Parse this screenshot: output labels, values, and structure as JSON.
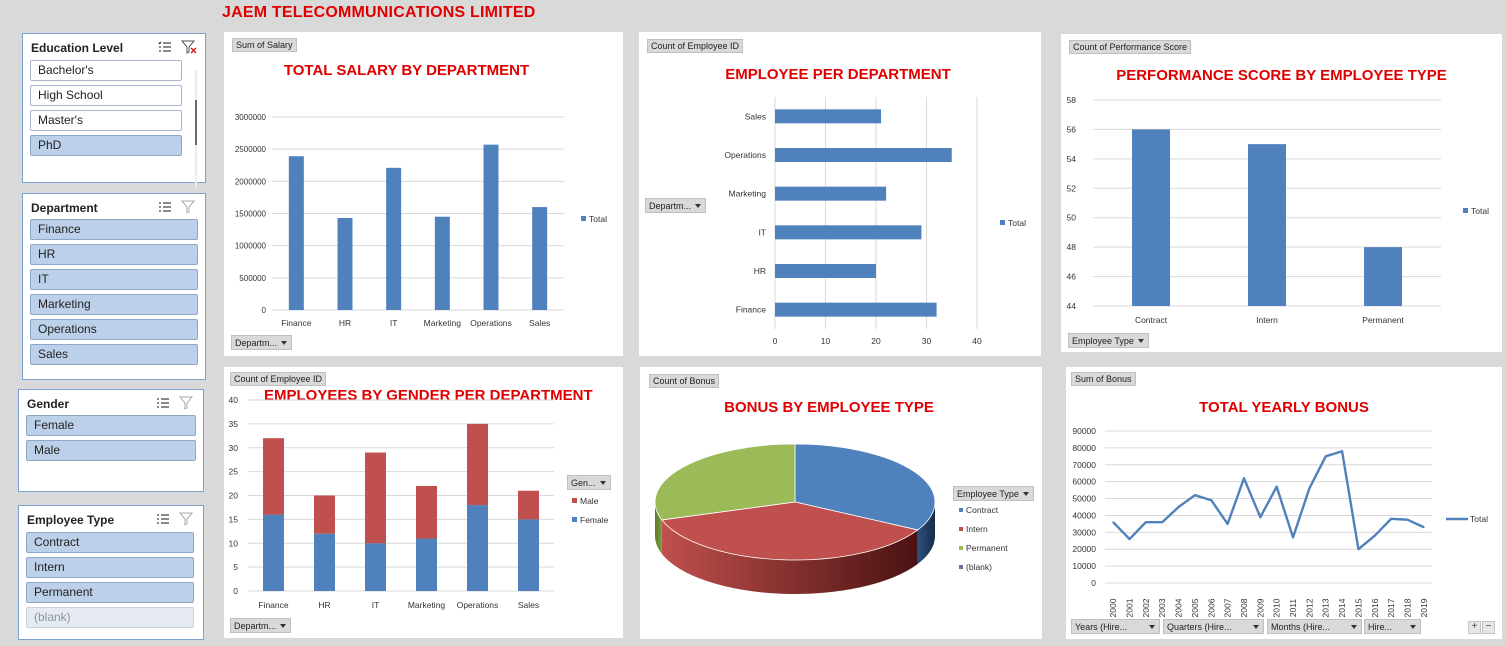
{
  "dashboard": {
    "title": "JAEM TELECOMMUNICATIONS LIMITED"
  },
  "icons": [
    "multi-select-icon",
    "clear-filter-icon",
    "dropdown-arrow-icon",
    "zoom-in-icon",
    "zoom-out-icon"
  ],
  "colors": {
    "blue": "#4f81bd",
    "red": "#c0504d",
    "green": "#9bbb59",
    "purple": "#8064a2",
    "title_red": "#e00000"
  },
  "slicers": {
    "education": {
      "title": "Education Level",
      "items": [
        "Bachelor's",
        "High School",
        "Master's",
        "PhD"
      ],
      "selected": [
        3
      ]
    },
    "department": {
      "title": "Department",
      "items": [
        "Finance",
        "HR",
        "IT",
        "Marketing",
        "Operations",
        "Sales"
      ]
    },
    "gender": {
      "title": "Gender",
      "items": [
        "Female",
        "Male"
      ]
    },
    "employee_type": {
      "title": "Employee Type",
      "items": [
        "Contract",
        "Intern",
        "Permanent",
        "(blank)"
      ]
    }
  },
  "charts": {
    "salary": {
      "tag": "Sum of Salary",
      "title": "TOTAL SALARY BY DEPARTMENT",
      "field_button": "Departm...",
      "legend": "Total"
    },
    "employees": {
      "tag": "Count of Employee ID",
      "title": "EMPLOYEE PER DEPARTMENT",
      "field_button": "Departm...",
      "legend": "Total"
    },
    "performance": {
      "tag": "Count of Performance Score",
      "title": "PERFORMANCE SCORE BY EMPLOYEE TYPE",
      "field_button": "Employee Type",
      "legend": "Total"
    },
    "gender": {
      "tag": "Count of Employee ID",
      "title": "EMPLOYEES BY GENDER PER DEPARTMENT",
      "field_button": "Departm...",
      "legend_button": "Gen..."
    },
    "bonus_type": {
      "tag": "Count of Bonus",
      "title": "BONUS BY EMPLOYEE TYPE",
      "legend_button": "Employee Type"
    },
    "yearly": {
      "tag": "Sum of Bonus",
      "title": "TOTAL YEARLY BONUS",
      "legend": "Total",
      "field_buttons": [
        "Years (Hire...",
        "Quarters (Hire...",
        "Months (Hire...",
        "Hire..."
      ],
      "zoom_in": "+",
      "zoom_out": "−"
    }
  },
  "chart_data": [
    {
      "type": "bar",
      "title": "TOTAL SALARY BY DEPARTMENT",
      "categories": [
        "Finance",
        "HR",
        "IT",
        "Marketing",
        "Operations",
        "Sales"
      ],
      "series": [
        {
          "name": "Total",
          "values": [
            2390000,
            1430000,
            2210000,
            1450000,
            2570000,
            1600000
          ]
        }
      ],
      "ylim": [
        0,
        3000000
      ],
      "yticks": [
        0,
        500000,
        1000000,
        1500000,
        2000000,
        2500000,
        3000000
      ],
      "grid": true,
      "legend": "right"
    },
    {
      "type": "bar",
      "orientation": "horizontal",
      "title": "EMPLOYEE PER DEPARTMENT",
      "categories": [
        "Finance",
        "HR",
        "IT",
        "Marketing",
        "Operations",
        "Sales"
      ],
      "series": [
        {
          "name": "Total",
          "values": [
            32,
            20,
            29,
            22,
            35,
            21
          ]
        }
      ],
      "xlim": [
        0,
        40
      ],
      "xticks": [
        0,
        10,
        20,
        30,
        40
      ],
      "grid": true,
      "legend": "right"
    },
    {
      "type": "bar",
      "title": "PERFORMANCE SCORE BY EMPLOYEE TYPE",
      "categories": [
        "Contract",
        "Intern",
        "Permanent"
      ],
      "series": [
        {
          "name": "Total",
          "values": [
            56,
            55,
            48
          ]
        }
      ],
      "ylim": [
        44,
        58
      ],
      "yticks": [
        44,
        46,
        48,
        50,
        52,
        54,
        56,
        58
      ],
      "grid": true,
      "legend": "right"
    },
    {
      "type": "bar",
      "stacked": true,
      "title": "EMPLOYEES BY GENDER PER DEPARTMENT",
      "categories": [
        "Finance",
        "HR",
        "IT",
        "Marketing",
        "Operations",
        "Sales"
      ],
      "series": [
        {
          "name": "Female",
          "values": [
            16,
            12,
            10,
            11,
            18,
            15
          ]
        },
        {
          "name": "Male",
          "values": [
            16,
            8,
            19,
            11,
            17,
            6
          ]
        }
      ],
      "ylim": [
        0,
        40
      ],
      "yticks": [
        0,
        5,
        10,
        15,
        20,
        25,
        30,
        35,
        40
      ],
      "grid": true,
      "legend": "right"
    },
    {
      "type": "pie",
      "title": "BONUS BY EMPLOYEE TYPE",
      "labels": [
        "Contract",
        "Intern",
        "Permanent",
        "(blank)"
      ],
      "values": [
        33,
        37,
        30,
        0
      ],
      "legend": "right"
    },
    {
      "type": "line",
      "title": "TOTAL YEARLY BONUS",
      "x": [
        "2000",
        "2001",
        "2002",
        "2003",
        "2004",
        "2005",
        "2006",
        "2007",
        "2008",
        "2009",
        "2010",
        "2011",
        "2012",
        "2013",
        "2014",
        "2015",
        "2016",
        "2017",
        "2018",
        "2019"
      ],
      "series": [
        {
          "name": "Total",
          "values": [
            36000,
            26000,
            36000,
            36000,
            45000,
            52000,
            49000,
            35000,
            62000,
            39000,
            57000,
            27000,
            56000,
            75000,
            78000,
            20000,
            28000,
            38000,
            37500,
            33000
          ]
        }
      ],
      "ylim": [
        0,
        90000
      ],
      "yticks": [
        0,
        10000,
        20000,
        30000,
        40000,
        50000,
        60000,
        70000,
        80000,
        90000
      ],
      "grid": true,
      "legend": "right"
    }
  ]
}
